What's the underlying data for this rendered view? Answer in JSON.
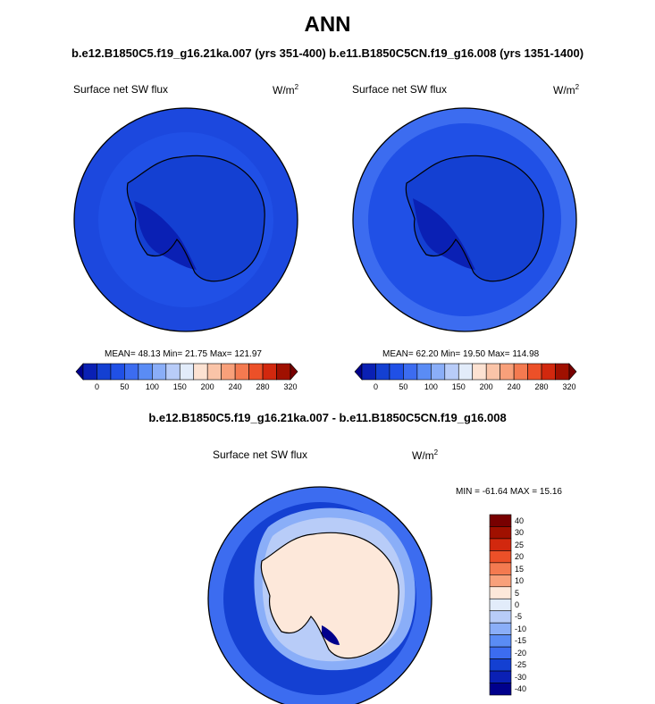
{
  "title": "ANN",
  "subtitle": "b.e12.B1850C5.f19_g16.21ka.007 (yrs 351-400) b.e11.B1850C5CN.f19_g16.008 (yrs 1351-1400)",
  "panels": [
    {
      "label": "Surface net SW flux",
      "units": "W/m",
      "units_sup": "2",
      "stats": "MEAN=  48.13  Min=  21.75  Max= 121.97"
    },
    {
      "label": "Surface net SW flux",
      "units": "W/m",
      "units_sup": "2",
      "stats": "MEAN=  62.20  Min=  19.50  Max= 114.98"
    }
  ],
  "colorbar": {
    "colors": [
      "#00008c",
      "#0a20b4",
      "#1440d2",
      "#2050e6",
      "#3c6cf0",
      "#5a8cf5",
      "#8aaef8",
      "#b8ccf8",
      "#e2ecfa",
      "#fce2d2",
      "#fac4a8",
      "#f8a07a",
      "#f47a50",
      "#ec5028",
      "#d2280e",
      "#a01000",
      "#780000"
    ],
    "tick_labels": [
      "0",
      "50",
      "100",
      "150",
      "200",
      "240",
      "280",
      "320"
    ]
  },
  "diff": {
    "title": "b.e12.B1850C5.f19_g16.21ka.007 - b.e11.B1850C5CN.f19_g16.008",
    "label": "Surface net SW flux",
    "units": "W/m",
    "units_sup": "2",
    "stats": "MIN = -61.64 MAX =  15.16",
    "colors_top_to_bottom": [
      "#780000",
      "#a01000",
      "#d2280e",
      "#ec5028",
      "#f47a50",
      "#f8a07a",
      "#fde8da",
      "#e2ecfa",
      "#b8ccf8",
      "#8aaef8",
      "#5a8cf5",
      "#3c6cf0",
      "#1440d2",
      "#0a20b4",
      "#00008c"
    ],
    "tick_labels_top_to_bottom": [
      "40",
      "30",
      "25",
      "20",
      "15",
      "10",
      "5",
      "0",
      "-5",
      "-10",
      "-15",
      "-20",
      "-25",
      "-30",
      "-40"
    ]
  }
}
